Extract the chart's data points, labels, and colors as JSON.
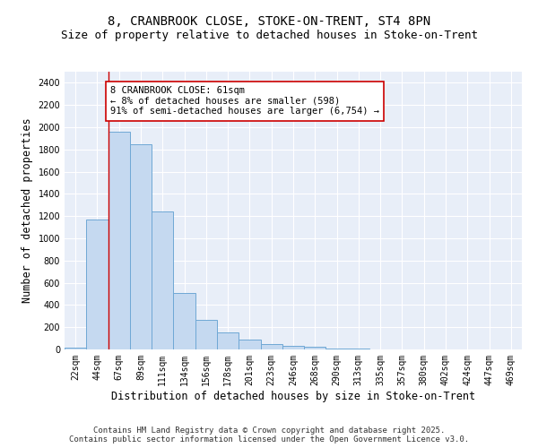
{
  "title_line1": "8, CRANBROOK CLOSE, STOKE-ON-TRENT, ST4 8PN",
  "title_line2": "Size of property relative to detached houses in Stoke-on-Trent",
  "xlabel": "Distribution of detached houses by size in Stoke-on-Trent",
  "ylabel": "Number of detached properties",
  "categories": [
    "22sqm",
    "44sqm",
    "67sqm",
    "89sqm",
    "111sqm",
    "134sqm",
    "156sqm",
    "178sqm",
    "201sqm",
    "223sqm",
    "246sqm",
    "268sqm",
    "290sqm",
    "313sqm",
    "335sqm",
    "357sqm",
    "380sqm",
    "402sqm",
    "424sqm",
    "447sqm",
    "469sqm"
  ],
  "values": [
    20,
    1170,
    1960,
    1850,
    1240,
    510,
    270,
    155,
    85,
    45,
    30,
    25,
    10,
    5,
    3,
    2,
    2,
    1,
    1,
    1,
    1
  ],
  "bar_color": "#c5d9f0",
  "bar_edge_color": "#6fa8d5",
  "vline_x": 1.5,
  "vline_color": "#cc0000",
  "annotation_title": "8 CRANBROOK CLOSE: 61sqm",
  "annotation_line1": "← 8% of detached houses are smaller (598)",
  "annotation_line2": "91% of semi-detached houses are larger (6,754) →",
  "annotation_box_color": "#cc0000",
  "ylim": [
    0,
    2500
  ],
  "yticks": [
    0,
    200,
    400,
    600,
    800,
    1000,
    1200,
    1400,
    1600,
    1800,
    2000,
    2200,
    2400
  ],
  "background_color": "#e8eef8",
  "footer_line1": "Contains HM Land Registry data © Crown copyright and database right 2025.",
  "footer_line2": "Contains public sector information licensed under the Open Government Licence v3.0.",
  "title_fontsize": 10,
  "subtitle_fontsize": 9,
  "axis_label_fontsize": 8.5,
  "tick_fontsize": 7,
  "annotation_fontsize": 7.5,
  "footer_fontsize": 6.5
}
